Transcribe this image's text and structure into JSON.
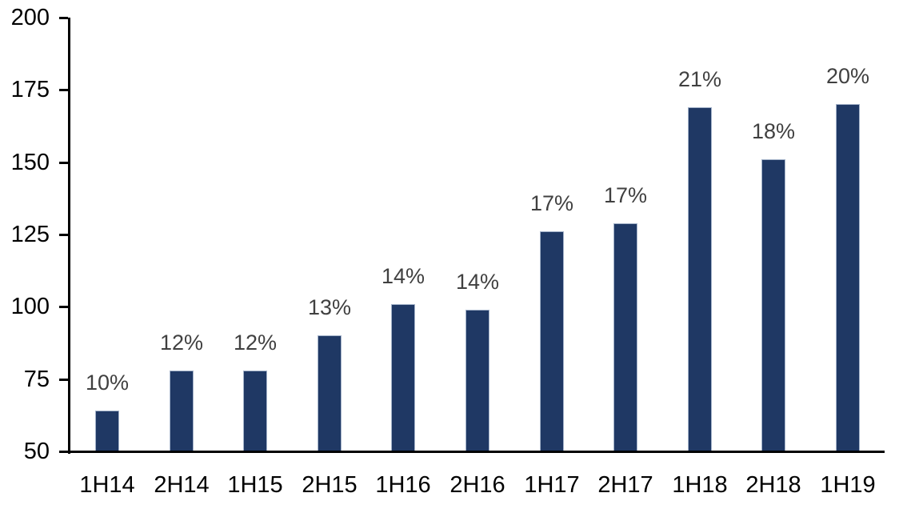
{
  "chart_data": {
    "type": "bar",
    "title": "",
    "xlabel": "",
    "ylabel": "",
    "categories": [
      "1H14",
      "2H14",
      "1H15",
      "2H15",
      "1H16",
      "2H16",
      "1H17",
      "2H17",
      "1H18",
      "2H18",
      "1H19"
    ],
    "values": [
      64,
      78,
      78,
      90,
      101,
      99,
      126,
      129,
      169,
      151,
      170
    ],
    "bar_labels": [
      "10%",
      "12%",
      "12%",
      "13%",
      "14%",
      "14%",
      "17%",
      "17%",
      "21%",
      "18%",
      "20%"
    ],
    "ylim": [
      50,
      200
    ],
    "ytick_step": 25,
    "yticks": [
      "50",
      "75",
      "100",
      "125",
      "150",
      "175",
      "200"
    ],
    "grid": false,
    "legend": false,
    "colors": {
      "bar_fill": "#1f3864",
      "bar_border": "#a3b2c9",
      "data_label": "#404040",
      "axis_text": "#000000",
      "axis_line": "#000000",
      "background": "#ffffff"
    }
  }
}
